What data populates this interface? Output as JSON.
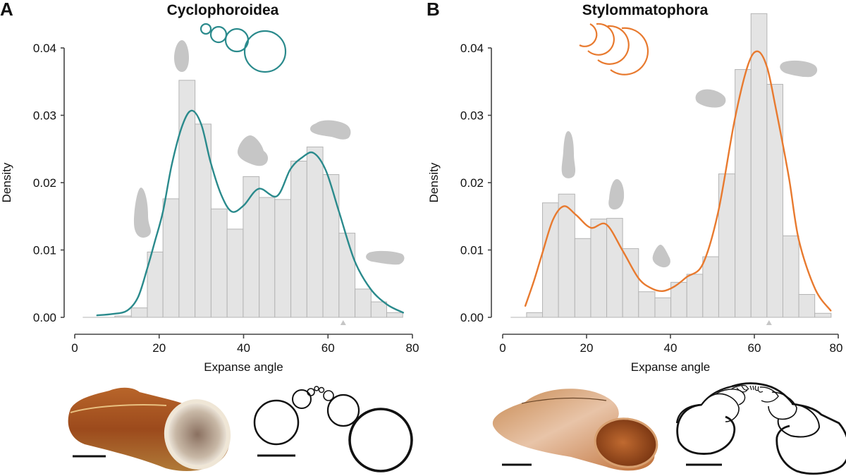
{
  "figure": {
    "panels": [
      {
        "letter": "A",
        "title": "Cyclophoroidea",
        "accent": "#2a8a8c"
      },
      {
        "letter": "B",
        "title": "Stylommatophora",
        "accent": "#e87a2f"
      }
    ],
    "bar_fill": "#e4e4e4",
    "bar_stroke": "#b4b4b4",
    "silhouette_color": "#c6c6c6"
  },
  "chart_data": [
    {
      "type": "bar",
      "panel": "A",
      "title": "Cyclophoroidea",
      "xlabel": "Expanse angle",
      "ylabel": "Density",
      "xlim": [
        0,
        80
      ],
      "ylim": [
        0,
        0.04
      ],
      "xticks": [
        "0",
        "20",
        "40",
        "60",
        "80"
      ],
      "yticks": [
        "0.00",
        "0.01",
        "0.02",
        "0.03",
        "0.04"
      ],
      "bin_edges": [
        1.9,
        5.7,
        9.5,
        13.4,
        17.2,
        20.9,
        24.7,
        28.5,
        32.3,
        36.1,
        39.9,
        43.7,
        47.4,
        51.2,
        55.0,
        58.8,
        62.6,
        66.4,
        70.2,
        73.9,
        77.7
      ],
      "values": [
        0.0,
        0.0,
        0.0002,
        0.0014,
        0.0097,
        0.0176,
        0.0352,
        0.0287,
        0.0161,
        0.0131,
        0.0209,
        0.0178,
        0.0175,
        0.0232,
        0.0253,
        0.0212,
        0.0125,
        0.0042,
        0.0023,
        0.0007
      ],
      "density_curve": {
        "color": "#2a8a8c",
        "x": [
          5.3,
          9.0,
          12.4,
          15.0,
          17.2,
          19.0,
          20.9,
          23.0,
          25.5,
          27.7,
          30.0,
          32.2,
          34.7,
          37.2,
          40.0,
          43.6,
          47.9,
          51.1,
          54.0,
          56.6,
          59.5,
          62.6,
          66.3,
          70.1,
          74.0,
          77.8
        ],
        "y": [
          0.0003,
          0.0005,
          0.001,
          0.003,
          0.0073,
          0.0113,
          0.0157,
          0.0227,
          0.0285,
          0.0307,
          0.0286,
          0.023,
          0.0182,
          0.0157,
          0.0166,
          0.0191,
          0.018,
          0.022,
          0.0238,
          0.0244,
          0.0218,
          0.0157,
          0.0084,
          0.0042,
          0.0019,
          0.0007
        ]
      },
      "marker": {
        "type": "triangle",
        "x": 63.6
      }
    },
    {
      "type": "bar",
      "panel": "B",
      "title": "Stylommatophora",
      "xlabel": "Expanse angle",
      "ylabel": "Density",
      "xlim": [
        0,
        80
      ],
      "ylim": [
        0,
        0.04
      ],
      "xticks": [
        "0",
        "20",
        "40",
        "60",
        "80"
      ],
      "yticks": [
        "0.00",
        "0.01",
        "0.02",
        "0.03",
        "0.04"
      ],
      "bin_edges": [
        1.9,
        5.7,
        9.5,
        13.3,
        17.2,
        21.0,
        24.8,
        28.6,
        32.4,
        36.3,
        40.1,
        43.9,
        47.7,
        51.5,
        55.4,
        59.2,
        63.0,
        66.8,
        70.6,
        74.4,
        78.3
      ],
      "values": [
        0.0,
        0.0007,
        0.017,
        0.0183,
        0.0117,
        0.0146,
        0.0147,
        0.0102,
        0.0038,
        0.0029,
        0.0052,
        0.0064,
        0.009,
        0.0213,
        0.0368,
        0.0451,
        0.0346,
        0.0121,
        0.0034,
        0.0006
      ],
      "density_curve": {
        "color": "#e87a2f",
        "x": [
          5.4,
          7.5,
          9.4,
          12.0,
          14.6,
          17.5,
          21.0,
          24.7,
          28.6,
          32.4,
          35.5,
          38.2,
          41.0,
          43.9,
          47.7,
          51.4,
          55.3,
          58.5,
          60.8,
          63.0,
          65.0,
          68.2,
          70.6,
          74.5,
          78.2
        ],
        "y": [
          0.0017,
          0.0055,
          0.0094,
          0.0145,
          0.0165,
          0.0152,
          0.0133,
          0.0138,
          0.0099,
          0.0058,
          0.0043,
          0.0039,
          0.0046,
          0.006,
          0.0079,
          0.0157,
          0.0293,
          0.0375,
          0.0395,
          0.0372,
          0.0314,
          0.0209,
          0.0115,
          0.0042,
          0.001
        ]
      },
      "marker": {
        "type": "triangle",
        "x": 63.5
      }
    }
  ]
}
